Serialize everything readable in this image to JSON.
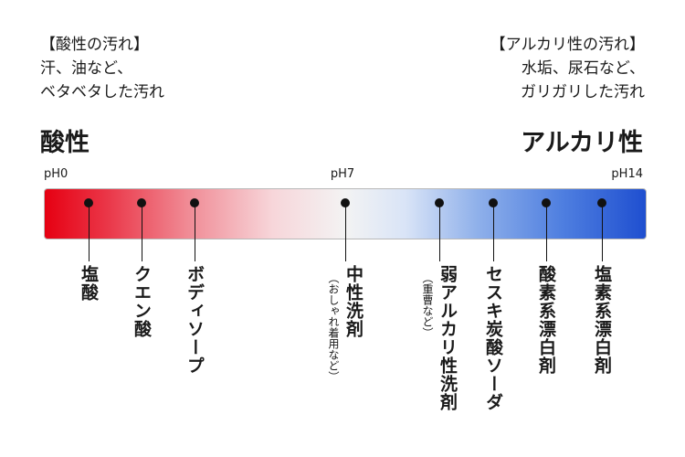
{
  "acid_note": {
    "title": "【酸性の汚れ】",
    "line1": "汗、油など、",
    "line2": "ベタベタした汚れ"
  },
  "alkaline_note": {
    "title": "【アルカリ性の汚れ】",
    "line1": "水垢、尿石など、",
    "line2": "ガリガリした汚れ"
  },
  "acid_heading": "酸性",
  "alkaline_heading": "アルカリ性",
  "ph_labels": {
    "left": "pH0",
    "middle": "pH7",
    "right": "pH14"
  },
  "scale_colors": {
    "acid": "#e60012",
    "neutral": "#f3f3f3",
    "alkaline": "#1f4fd0"
  },
  "markers": [
    {
      "label": "塩酸",
      "sub": ""
    },
    {
      "label": "クエン酸",
      "sub": ""
    },
    {
      "label": "ボディソープ",
      "sub": ""
    },
    {
      "label": "中性洗剤",
      "sub": "（おしゃれ着用など）"
    },
    {
      "label": "弱アルカリ性洗剤",
      "sub": "（重曹など）"
    },
    {
      "label": "セスキ炭酸ソーダ",
      "sub": ""
    },
    {
      "label": "酸素系漂白剤",
      "sub": ""
    },
    {
      "label": "塩素系漂白剤",
      "sub": ""
    }
  ]
}
